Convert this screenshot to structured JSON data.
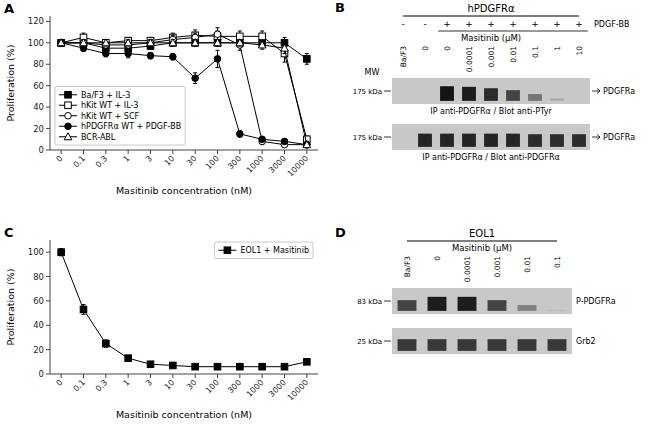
{
  "chart_data": [
    {
      "type": "line",
      "annotations": [
        "A"
      ],
      "xlabel": "Masitinib concentration (nM)",
      "ylabel": "Proliferation (%)",
      "categories": [
        "0",
        "0.1",
        "0.3",
        "1",
        "3",
        "10",
        "30",
        "100",
        "300",
        "1000",
        "3000",
        "10000"
      ],
      "ylim": [
        0,
        125
      ],
      "yticks": [
        0,
        20,
        40,
        60,
        80,
        100,
        120
      ],
      "legend": "lower left",
      "series": [
        {
          "name": "Ba/F3 + IL-3",
          "color": "black",
          "marker": "square",
          "values": [
            100,
            100,
            95,
            95,
            97,
            100,
            100,
            100,
            100,
            100,
            100,
            85
          ],
          "errors": [
            3,
            3,
            3,
            3,
            3,
            3,
            3,
            3,
            4,
            4,
            5,
            5
          ]
        },
        {
          "name": "hKit WT + IL-3",
          "color": "black",
          "marker": "square-open",
          "values": [
            100,
            105,
            100,
            102,
            102,
            105,
            107,
            106,
            106,
            106,
            90,
            10
          ],
          "errors": [
            3,
            4,
            3,
            3,
            3,
            4,
            5,
            5,
            5,
            5,
            8,
            3
          ]
        },
        {
          "name": "hKit WT + SCF",
          "color": "black",
          "marker": "circle-open",
          "values": [
            100,
            100,
            98,
            98,
            100,
            103,
            105,
            108,
            98,
            8,
            5,
            5
          ],
          "errors": [
            3,
            3,
            3,
            4,
            3,
            4,
            4,
            6,
            5,
            3,
            2,
            2
          ]
        },
        {
          "name": "hPDGFRα WT + PDGF-BB",
          "color": "black",
          "marker": "circle",
          "values": [
            100,
            95,
            90,
            90,
            88,
            87,
            67,
            85,
            15,
            10,
            8,
            5
          ],
          "errors": [
            3,
            3,
            3,
            4,
            3,
            3,
            5,
            8,
            3,
            2,
            2,
            2
          ]
        },
        {
          "name": "BCR-ABL",
          "color": "black",
          "marker": "triangle-open",
          "values": [
            100,
            100,
            100,
            100,
            100,
            100,
            100,
            100,
            100,
            98,
            95,
            5
          ],
          "errors": [
            3,
            3,
            3,
            3,
            3,
            3,
            3,
            3,
            3,
            4,
            5,
            3
          ]
        }
      ]
    },
    {
      "type": "blot",
      "annotations": [
        "B",
        "PDGF-BB",
        "MW",
        "- ",
        "-",
        "+",
        "+",
        "+",
        "+",
        "+",
        "+",
        "+"
      ],
      "title": "hPDGFRα",
      "xlabel": "Masitinib (μM)",
      "categories": [
        "Ba/F3",
        "0",
        "0",
        "0.0001",
        "0.001",
        "0.01",
        "0.1",
        "1",
        "10"
      ],
      "series": [
        {
          "name": "PDGFRa",
          "caption": "IP anti-PDGFRα / Blot anti-PTyr",
          "mw_label": "175 kDa",
          "values": [
            0.0,
            0.0,
            0.75,
            0.72,
            0.65,
            0.55,
            0.35,
            0.12,
            0.0
          ]
        },
        {
          "name": "PDGFRa",
          "caption": "IP anti-PDGFRα / Blot anti-PDGFRα",
          "mw_label": "175 kDa",
          "values": [
            0.0,
            0.68,
            0.68,
            0.68,
            0.68,
            0.68,
            0.65,
            0.65,
            0.65
          ]
        }
      ]
    },
    {
      "type": "line",
      "annotations": [
        "C"
      ],
      "xlabel": "Masitinib concentration (nM)",
      "ylabel": "Proliferation (%)",
      "categories": [
        "0",
        "0.1",
        "0.3",
        "1",
        "3",
        "10",
        "30",
        "100",
        "300",
        "1000",
        "3000",
        "10000"
      ],
      "ylim": [
        0,
        110
      ],
      "yticks": [
        0,
        20,
        40,
        60,
        80,
        100
      ],
      "legend": "upper right",
      "series": [
        {
          "name": "EOL1 + Masitinib",
          "color": "black",
          "marker": "square",
          "values": [
            100,
            53,
            25,
            13,
            8,
            7,
            6,
            6,
            6,
            6,
            6,
            10
          ],
          "errors": [
            3,
            4,
            3,
            2,
            1,
            1,
            1,
            1,
            1,
            1,
            1,
            2
          ]
        }
      ]
    },
    {
      "type": "blot",
      "annotations": [
        "D"
      ],
      "title": "EOL1",
      "xlabel": "Masitinib (μM)",
      "categories": [
        "Ba/F3",
        "0",
        "0.0001",
        "0.001",
        "0.01",
        "0.1"
      ],
      "series": [
        {
          "name": "P-PDGFRa",
          "mw_label": "83 kDa",
          "values": [
            0.55,
            0.72,
            0.72,
            0.55,
            0.3,
            0.05
          ]
        },
        {
          "name": "Grb2",
          "mw_label": "25 kDa",
          "values": [
            0.6,
            0.6,
            0.6,
            0.6,
            0.6,
            0.6
          ]
        }
      ]
    }
  ]
}
